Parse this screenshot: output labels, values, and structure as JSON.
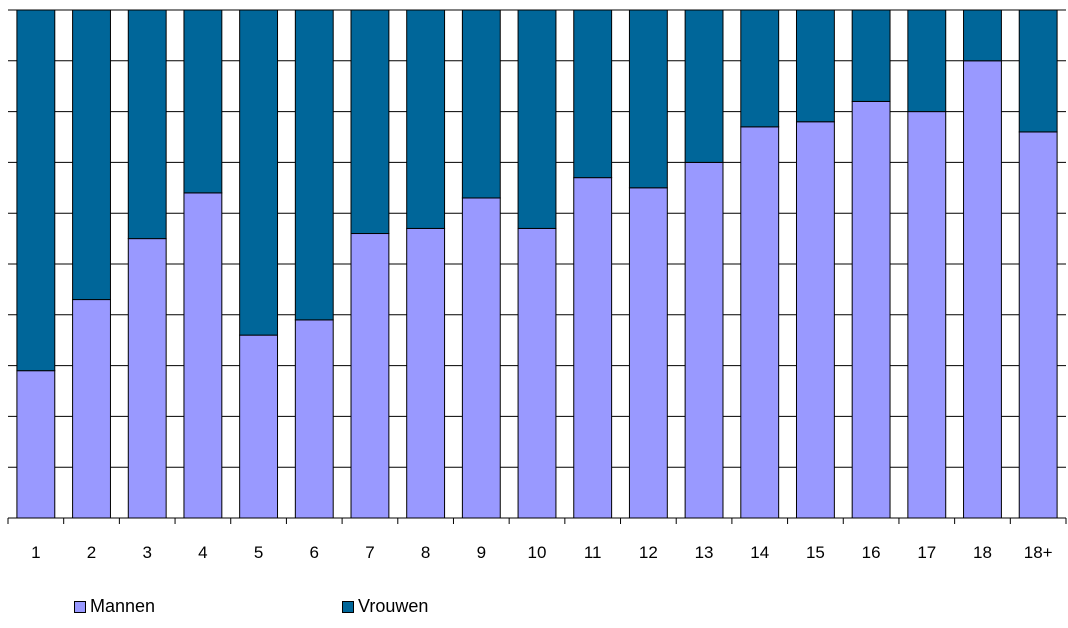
{
  "chart_data": {
    "type": "bar",
    "stacked": true,
    "percent_stacked": true,
    "categories": [
      "1",
      "2",
      "3",
      "4",
      "5",
      "6",
      "7",
      "8",
      "9",
      "10",
      "11",
      "12",
      "13",
      "14",
      "15",
      "16",
      "17",
      "18",
      "18+"
    ],
    "series": [
      {
        "name": "Mannen",
        "color": "#9999ff",
        "values": [
          29,
          43,
          55,
          64,
          36,
          39,
          56,
          57,
          63,
          57,
          67,
          65,
          70,
          77,
          78,
          82,
          80,
          90,
          76
        ]
      },
      {
        "name": "Vrouwen",
        "color": "#006699",
        "values": [
          71,
          57,
          45,
          36,
          64,
          61,
          44,
          43,
          37,
          43,
          33,
          35,
          30,
          23,
          22,
          18,
          20,
          10,
          24
        ]
      }
    ],
    "ylim": [
      0,
      100
    ],
    "gridlines": true,
    "legend_position": "bottom-left"
  }
}
